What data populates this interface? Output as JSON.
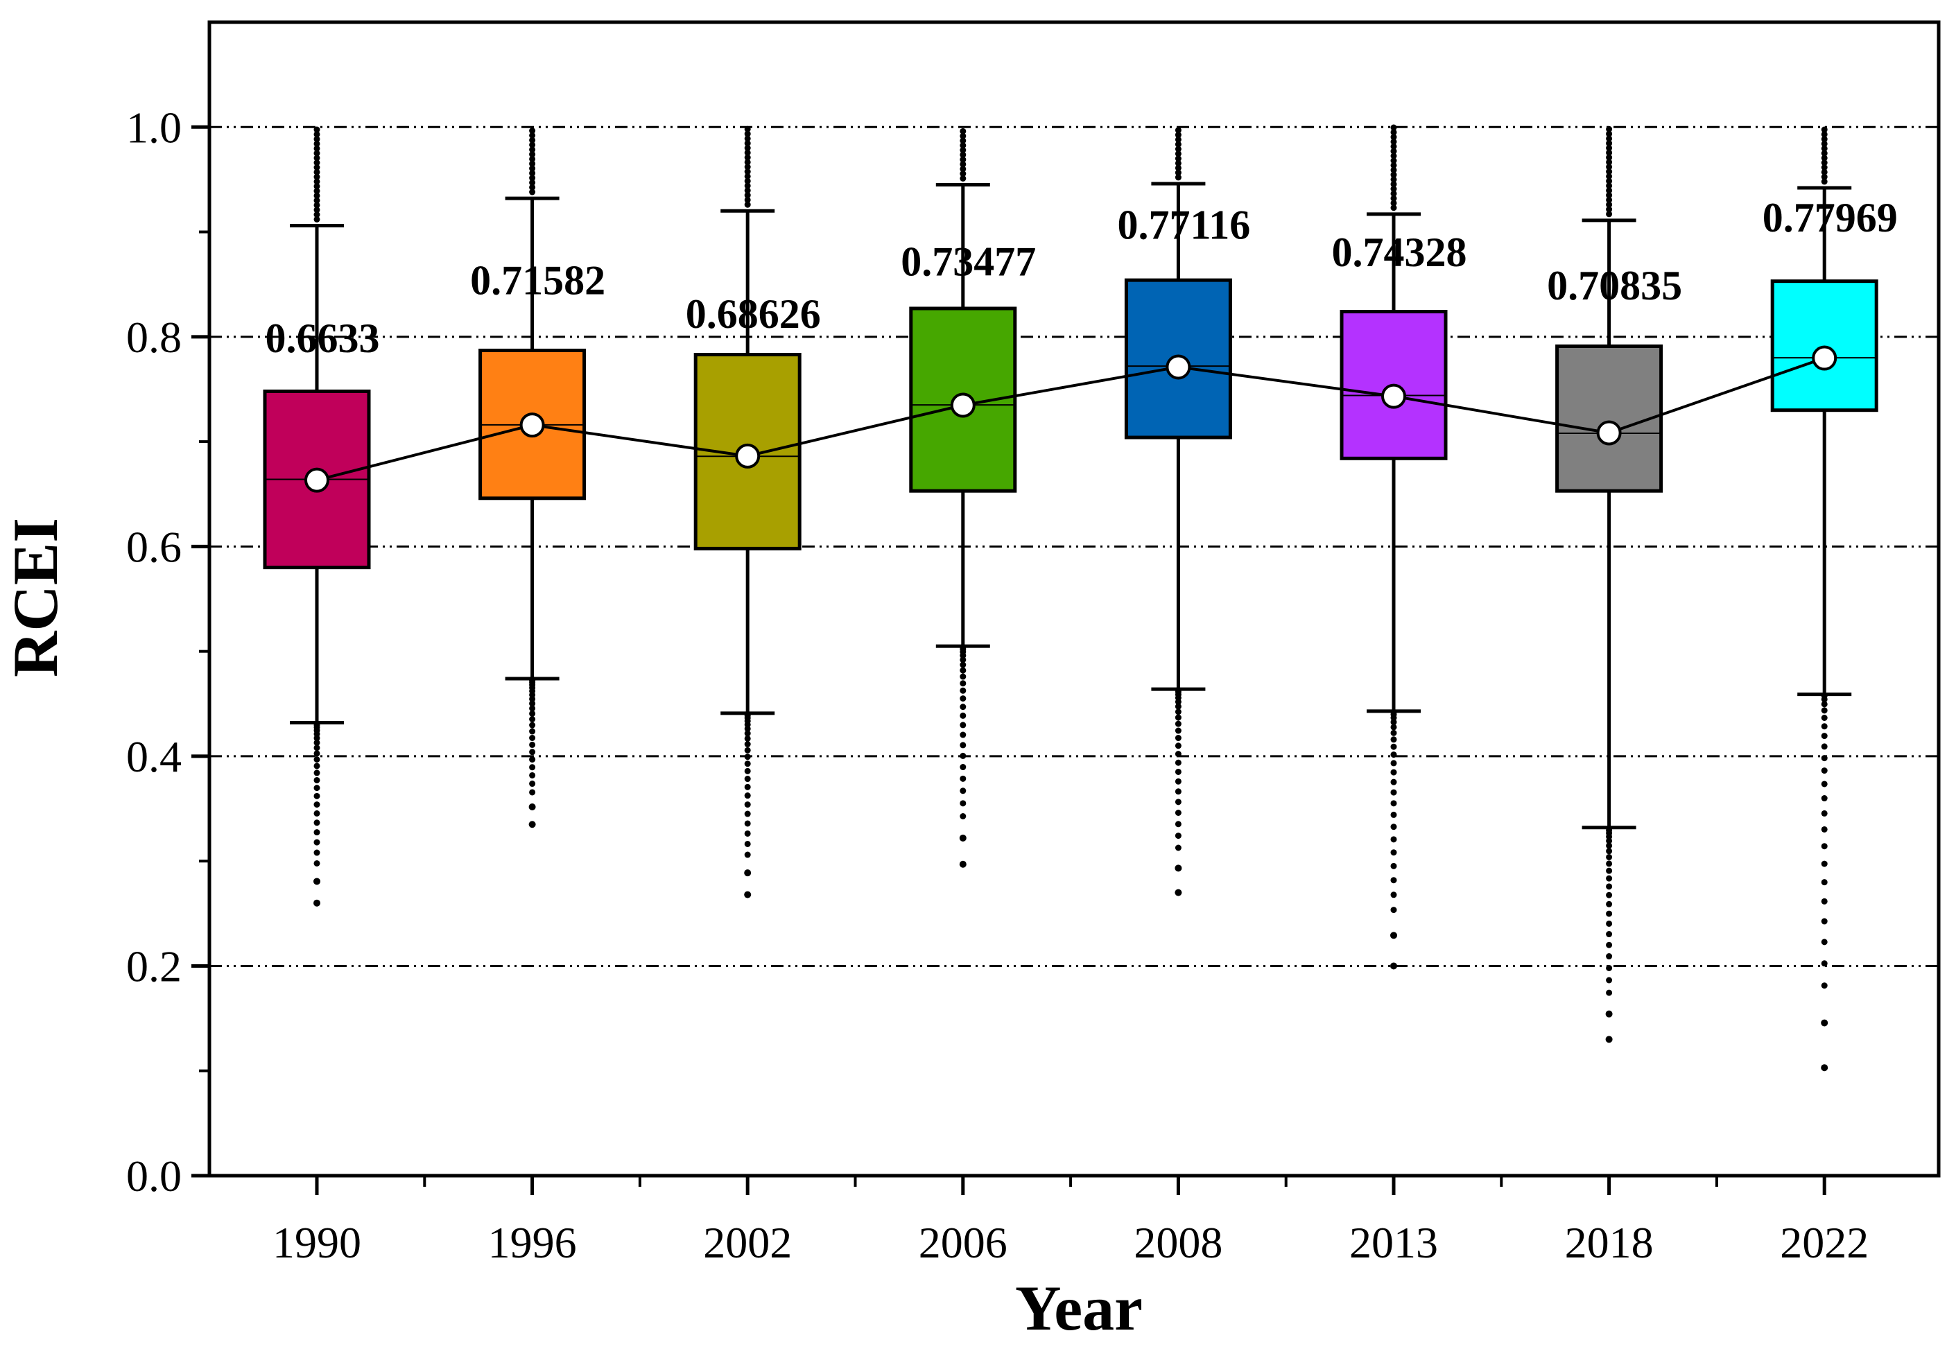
{
  "chart_data": {
    "type": "box",
    "title": "",
    "xlabel": "Year",
    "ylabel": "RCEI",
    "ylim": [
      0.0,
      1.1
    ],
    "yticks": [
      "0.0",
      "0.2",
      "0.4",
      "0.6",
      "0.8",
      "1.0"
    ],
    "grid": "horizontal dash-dot at 0.2, 0.4, 0.6, 0.8, 1.0",
    "categories": [
      "1990",
      "1996",
      "2002",
      "2006",
      "2008",
      "2013",
      "2018",
      "2022"
    ],
    "series": [
      {
        "year": "1990",
        "color": "#C0005A",
        "q1": 0.58,
        "median": 0.664,
        "q3": 0.748,
        "whisker_low": 0.432,
        "whisker_high": 0.906,
        "outlier_min": 0.26,
        "mean": 0.6633,
        "mean_label": "0.6633"
      },
      {
        "year": "1996",
        "color": "#FF8014",
        "q1": 0.646,
        "median": 0.716,
        "q3": 0.787,
        "whisker_low": 0.474,
        "whisker_high": 0.932,
        "outlier_min": 0.335,
        "mean": 0.71582,
        "mean_label": "0.71582"
      },
      {
        "year": "2002",
        "color": "#A8A000",
        "q1": 0.598,
        "median": 0.686,
        "q3": 0.783,
        "whisker_low": 0.441,
        "whisker_high": 0.92,
        "outlier_min": 0.268,
        "mean": 0.68626,
        "mean_label": "0.68626"
      },
      {
        "year": "2006",
        "color": "#46A700",
        "q1": 0.653,
        "median": 0.735,
        "q3": 0.827,
        "whisker_low": 0.505,
        "whisker_high": 0.945,
        "outlier_min": 0.297,
        "mean": 0.73477,
        "mean_label": "0.73477"
      },
      {
        "year": "2008",
        "color": "#0064B4",
        "q1": 0.704,
        "median": 0.772,
        "q3": 0.854,
        "whisker_low": 0.464,
        "whisker_high": 0.946,
        "outlier_min": 0.27,
        "mean": 0.77116,
        "mean_label": "0.77116"
      },
      {
        "year": "2013",
        "color": "#B432FF",
        "q1": 0.684,
        "median": 0.744,
        "q3": 0.824,
        "whisker_low": 0.443,
        "whisker_high": 0.917,
        "outlier_min": 0.2,
        "mean": 0.74328,
        "mean_label": "0.74328"
      },
      {
        "year": "2018",
        "color": "#808080",
        "q1": 0.653,
        "median": 0.708,
        "q3": 0.791,
        "whisker_low": 0.332,
        "whisker_high": 0.911,
        "outlier_min": 0.13,
        "mean": 0.70835,
        "mean_label": "0.70835"
      },
      {
        "year": "2022",
        "color": "#00FFFF",
        "q1": 0.73,
        "median": 0.78,
        "q3": 0.853,
        "whisker_low": 0.459,
        "whisker_high": 0.942,
        "outlier_min": 0.103,
        "mean": 0.77969,
        "mean_label": "0.77969"
      }
    ]
  }
}
